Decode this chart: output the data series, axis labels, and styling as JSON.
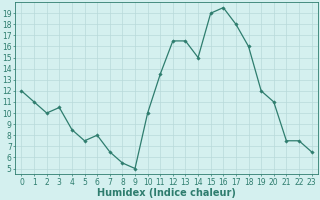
{
  "x": [
    0,
    1,
    2,
    3,
    4,
    5,
    6,
    7,
    8,
    9,
    10,
    11,
    12,
    13,
    14,
    15,
    16,
    17,
    18,
    19,
    20,
    21,
    22,
    23
  ],
  "y": [
    12,
    11,
    10,
    10.5,
    8.5,
    7.5,
    8,
    6.5,
    5.5,
    5,
    10,
    13.5,
    16.5,
    16.5,
    15,
    19,
    19.5,
    18,
    16,
    12,
    11,
    7.5,
    7.5,
    6.5
  ],
  "line_color": "#2e7d6e",
  "marker": "D",
  "marker_size": 1.8,
  "bg_color": "#d4f0ef",
  "grid_color": "#b8dada",
  "xlabel": "Humidex (Indice chaleur)",
  "xlim": [
    -0.5,
    23.5
  ],
  "ylim": [
    4.5,
    20
  ],
  "yticks": [
    5,
    6,
    7,
    8,
    9,
    10,
    11,
    12,
    13,
    14,
    15,
    16,
    17,
    18,
    19
  ],
  "xticks": [
    0,
    1,
    2,
    3,
    4,
    5,
    6,
    7,
    8,
    9,
    10,
    11,
    12,
    13,
    14,
    15,
    16,
    17,
    18,
    19,
    20,
    21,
    22,
    23
  ],
  "tick_fontsize": 5.5,
  "xlabel_fontsize": 7,
  "spine_color": "#2e7d6e",
  "linewidth": 0.9
}
